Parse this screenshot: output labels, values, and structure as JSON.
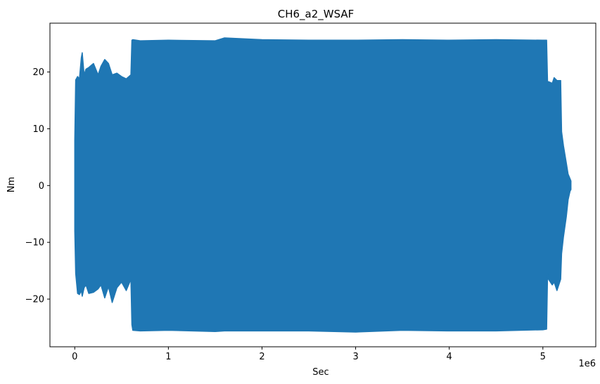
{
  "chart_data": {
    "type": "line",
    "title": "CH6_a2_WSAF",
    "xlabel": "Sec",
    "ylabel": "Nm",
    "x_offset_label": "1e6",
    "xlim": [
      -0.265,
      5.565
    ],
    "ylim": [
      -28.4,
      28.6
    ],
    "xticks": [
      0,
      1,
      2,
      3,
      4,
      5
    ],
    "yticks": [
      -20,
      -10,
      0,
      10,
      20
    ],
    "grid": false,
    "legend": "none",
    "color": "#1f77b4",
    "series": [
      {
        "envelope_x": [
          0.0,
          0.01,
          0.03,
          0.05,
          0.07,
          0.08,
          0.1,
          0.12,
          0.15,
          0.2,
          0.25,
          0.28,
          0.32,
          0.36,
          0.4,
          0.45,
          0.5,
          0.55,
          0.6,
          0.61,
          0.62,
          0.7,
          1.0,
          1.5,
          1.6,
          2.0,
          2.5,
          3.0,
          3.5,
          4.0,
          4.5,
          5.0,
          5.04,
          5.05,
          5.06,
          5.1,
          5.12,
          5.15,
          5.19,
          5.2,
          5.22,
          5.25,
          5.27,
          5.29,
          5.3
        ],
        "upper": [
          8,
          18.6,
          19.2,
          18.8,
          22.5,
          23.4,
          19.5,
          20.5,
          20.8,
          21.5,
          19.5,
          21.0,
          22.2,
          21.5,
          19.5,
          19.8,
          19.2,
          18.8,
          19.5,
          25.6,
          25.7,
          25.5,
          25.6,
          25.5,
          26.0,
          25.7,
          25.6,
          25.6,
          25.7,
          25.6,
          25.7,
          25.6,
          25.6,
          18.0,
          18.3,
          18.0,
          19.0,
          18.5,
          18.5,
          9.5,
          7.0,
          4.0,
          2.0,
          1.2,
          0.8
        ],
        "lower": [
          -8,
          -15.5,
          -19.0,
          -19.2,
          -18.5,
          -19.5,
          -18.0,
          -17.5,
          -19.0,
          -18.8,
          -18.2,
          -17.5,
          -19.8,
          -17.8,
          -20.6,
          -18.0,
          -17.0,
          -18.5,
          -16.5,
          -24.5,
          -25.5,
          -25.6,
          -25.5,
          -25.7,
          -25.6,
          -25.6,
          -25.6,
          -25.8,
          -25.5,
          -25.6,
          -25.6,
          -25.4,
          -25.3,
          -15.5,
          -16.5,
          -17.5,
          -17.0,
          -18.5,
          -16.5,
          -12.0,
          -9.0,
          -5.5,
          -2.5,
          -1.0,
          -0.7
        ]
      }
    ]
  }
}
